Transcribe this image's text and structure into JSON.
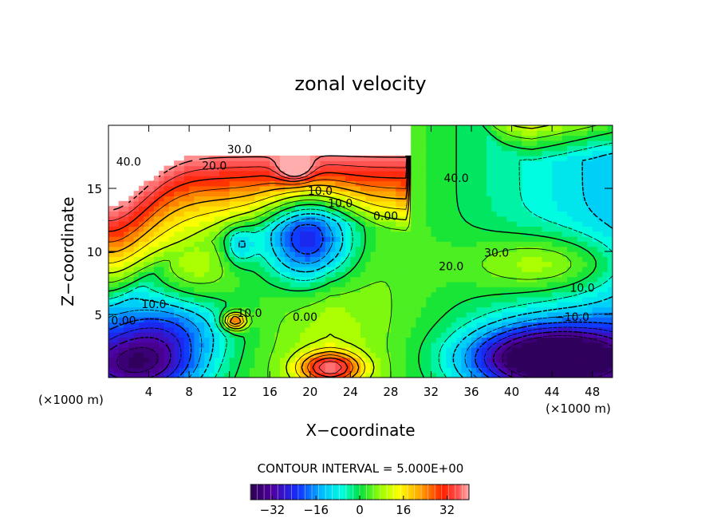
{
  "chart_data": {
    "type": "heatmap",
    "title": "zonal velocity",
    "xlabel": "X−coordinate",
    "ylabel": "Z−coordinate",
    "x_unit": "(×1000 m)",
    "y_unit": "(×1000 m)",
    "xlim": [
      0,
      50
    ],
    "ylim": [
      0,
      20
    ],
    "x_ticks": [
      "4",
      "8",
      "12",
      "16",
      "20",
      "24",
      "28",
      "32",
      "36",
      "40",
      "44",
      "48"
    ],
    "y_ticks": [
      "5",
      "10",
      "15"
    ],
    "contour_interval_text": "CONTOUR INTERVAL = 5.000E+00",
    "colorbar": {
      "range": [
        -40,
        40
      ],
      "tick_labels": [
        "−32",
        "−16",
        "0",
        "16",
        "32"
      ],
      "tick_values": [
        -32,
        -16,
        0,
        16,
        32
      ]
    },
    "contour_labels": [
      {
        "text": "40.0",
        "x": 2,
        "y": 16.8
      },
      {
        "text": "30.0",
        "x": 13,
        "y": 17.8
      },
      {
        "text": "20.0",
        "x": 10.5,
        "y": 16.5
      },
      {
        "text": "10.0",
        "x": 21,
        "y": 14.5
      },
      {
        "text": "10.0",
        "x": 23,
        "y": 13.5
      },
      {
        "text": "0.00",
        "x": 27.5,
        "y": 12.5
      },
      {
        "text": "40.0",
        "x": 34.5,
        "y": 15.5
      },
      {
        "text": "30.0",
        "x": 38.5,
        "y": 9.6
      },
      {
        "text": "20.0",
        "x": 34,
        "y": 8.5
      },
      {
        "text": "10.0",
        "x": 47,
        "y": 6.8
      },
      {
        "text": "−10.0",
        "x": 46,
        "y": 4.5
      },
      {
        "text": "10.0",
        "x": 4.5,
        "y": 5.5
      },
      {
        "text": "0.00",
        "x": 1.5,
        "y": 4.2
      },
      {
        "text": "10.0",
        "x": 14,
        "y": 4.8
      },
      {
        "text": "0.00",
        "x": 19.5,
        "y": 4.5
      }
    ]
  }
}
